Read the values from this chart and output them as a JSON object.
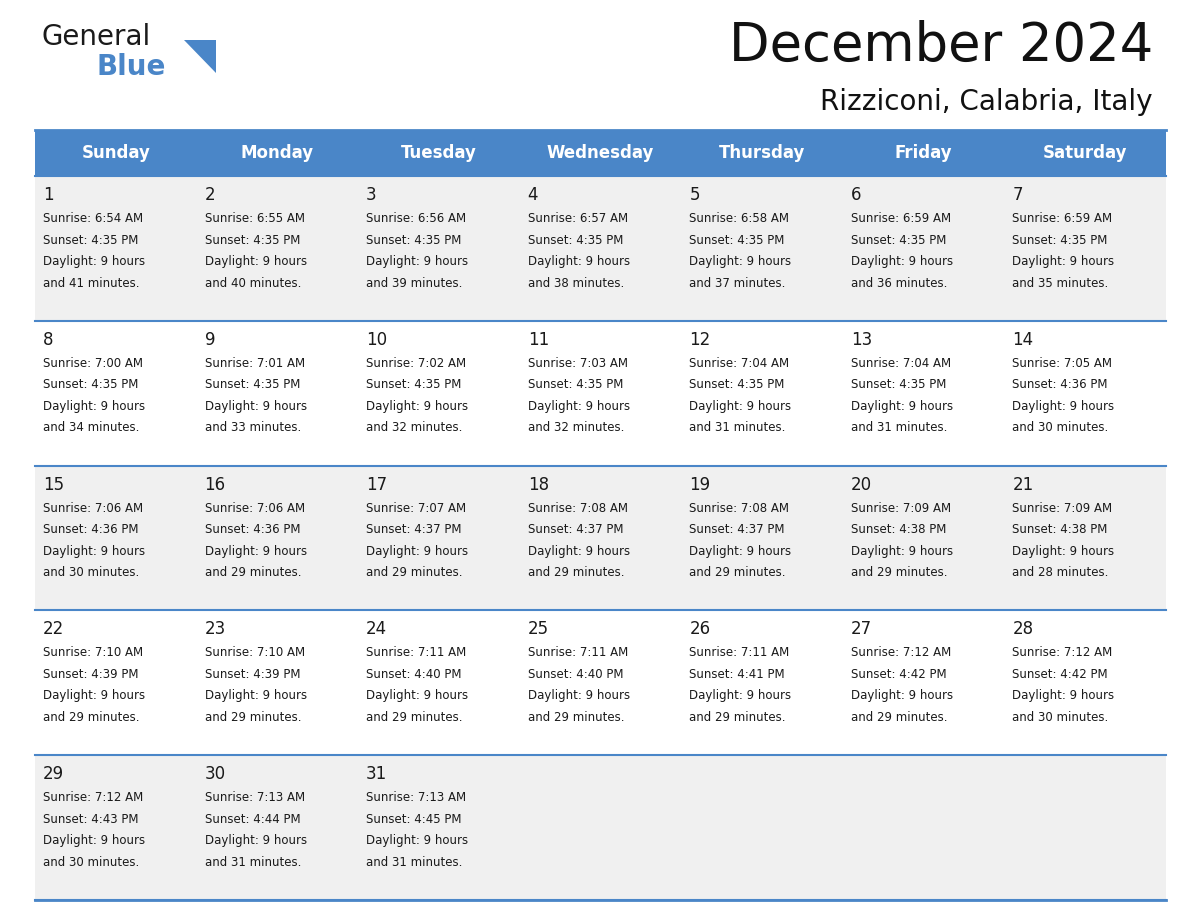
{
  "title": "December 2024",
  "subtitle": "Rizziconi, Calabria, Italy",
  "header_bg_color": "#4a86c8",
  "header_text_color": "#ffffff",
  "row_bg_even": "#f0f0f0",
  "row_bg_odd": "#ffffff",
  "border_color": "#4a86c8",
  "text_color": "#1a1a1a",
  "days_of_week": [
    "Sunday",
    "Monday",
    "Tuesday",
    "Wednesday",
    "Thursday",
    "Friday",
    "Saturday"
  ],
  "weeks": [
    [
      {
        "day": 1,
        "sunrise": "6:54 AM",
        "sunset": "4:35 PM",
        "daylight": "9 hours and 41 minutes."
      },
      {
        "day": 2,
        "sunrise": "6:55 AM",
        "sunset": "4:35 PM",
        "daylight": "9 hours and 40 minutes."
      },
      {
        "day": 3,
        "sunrise": "6:56 AM",
        "sunset": "4:35 PM",
        "daylight": "9 hours and 39 minutes."
      },
      {
        "day": 4,
        "sunrise": "6:57 AM",
        "sunset": "4:35 PM",
        "daylight": "9 hours and 38 minutes."
      },
      {
        "day": 5,
        "sunrise": "6:58 AM",
        "sunset": "4:35 PM",
        "daylight": "9 hours and 37 minutes."
      },
      {
        "day": 6,
        "sunrise": "6:59 AM",
        "sunset": "4:35 PM",
        "daylight": "9 hours and 36 minutes."
      },
      {
        "day": 7,
        "sunrise": "6:59 AM",
        "sunset": "4:35 PM",
        "daylight": "9 hours and 35 minutes."
      }
    ],
    [
      {
        "day": 8,
        "sunrise": "7:00 AM",
        "sunset": "4:35 PM",
        "daylight": "9 hours and 34 minutes."
      },
      {
        "day": 9,
        "sunrise": "7:01 AM",
        "sunset": "4:35 PM",
        "daylight": "9 hours and 33 minutes."
      },
      {
        "day": 10,
        "sunrise": "7:02 AM",
        "sunset": "4:35 PM",
        "daylight": "9 hours and 32 minutes."
      },
      {
        "day": 11,
        "sunrise": "7:03 AM",
        "sunset": "4:35 PM",
        "daylight": "9 hours and 32 minutes."
      },
      {
        "day": 12,
        "sunrise": "7:04 AM",
        "sunset": "4:35 PM",
        "daylight": "9 hours and 31 minutes."
      },
      {
        "day": 13,
        "sunrise": "7:04 AM",
        "sunset": "4:35 PM",
        "daylight": "9 hours and 31 minutes."
      },
      {
        "day": 14,
        "sunrise": "7:05 AM",
        "sunset": "4:36 PM",
        "daylight": "9 hours and 30 minutes."
      }
    ],
    [
      {
        "day": 15,
        "sunrise": "7:06 AM",
        "sunset": "4:36 PM",
        "daylight": "9 hours and 30 minutes."
      },
      {
        "day": 16,
        "sunrise": "7:06 AM",
        "sunset": "4:36 PM",
        "daylight": "9 hours and 29 minutes."
      },
      {
        "day": 17,
        "sunrise": "7:07 AM",
        "sunset": "4:37 PM",
        "daylight": "9 hours and 29 minutes."
      },
      {
        "day": 18,
        "sunrise": "7:08 AM",
        "sunset": "4:37 PM",
        "daylight": "9 hours and 29 minutes."
      },
      {
        "day": 19,
        "sunrise": "7:08 AM",
        "sunset": "4:37 PM",
        "daylight": "9 hours and 29 minutes."
      },
      {
        "day": 20,
        "sunrise": "7:09 AM",
        "sunset": "4:38 PM",
        "daylight": "9 hours and 29 minutes."
      },
      {
        "day": 21,
        "sunrise": "7:09 AM",
        "sunset": "4:38 PM",
        "daylight": "9 hours and 28 minutes."
      }
    ],
    [
      {
        "day": 22,
        "sunrise": "7:10 AM",
        "sunset": "4:39 PM",
        "daylight": "9 hours and 29 minutes."
      },
      {
        "day": 23,
        "sunrise": "7:10 AM",
        "sunset": "4:39 PM",
        "daylight": "9 hours and 29 minutes."
      },
      {
        "day": 24,
        "sunrise": "7:11 AM",
        "sunset": "4:40 PM",
        "daylight": "9 hours and 29 minutes."
      },
      {
        "day": 25,
        "sunrise": "7:11 AM",
        "sunset": "4:40 PM",
        "daylight": "9 hours and 29 minutes."
      },
      {
        "day": 26,
        "sunrise": "7:11 AM",
        "sunset": "4:41 PM",
        "daylight": "9 hours and 29 minutes."
      },
      {
        "day": 27,
        "sunrise": "7:12 AM",
        "sunset": "4:42 PM",
        "daylight": "9 hours and 29 minutes."
      },
      {
        "day": 28,
        "sunrise": "7:12 AM",
        "sunset": "4:42 PM",
        "daylight": "9 hours and 30 minutes."
      }
    ],
    [
      {
        "day": 29,
        "sunrise": "7:12 AM",
        "sunset": "4:43 PM",
        "daylight": "9 hours and 30 minutes."
      },
      {
        "day": 30,
        "sunrise": "7:13 AM",
        "sunset": "4:44 PM",
        "daylight": "9 hours and 31 minutes."
      },
      {
        "day": 31,
        "sunrise": "7:13 AM",
        "sunset": "4:45 PM",
        "daylight": "9 hours and 31 minutes."
      },
      null,
      null,
      null,
      null
    ]
  ],
  "logo_general_color": "#1a1a1a",
  "logo_blue_color": "#4a86c8",
  "logo_triangle_color": "#4a86c8"
}
